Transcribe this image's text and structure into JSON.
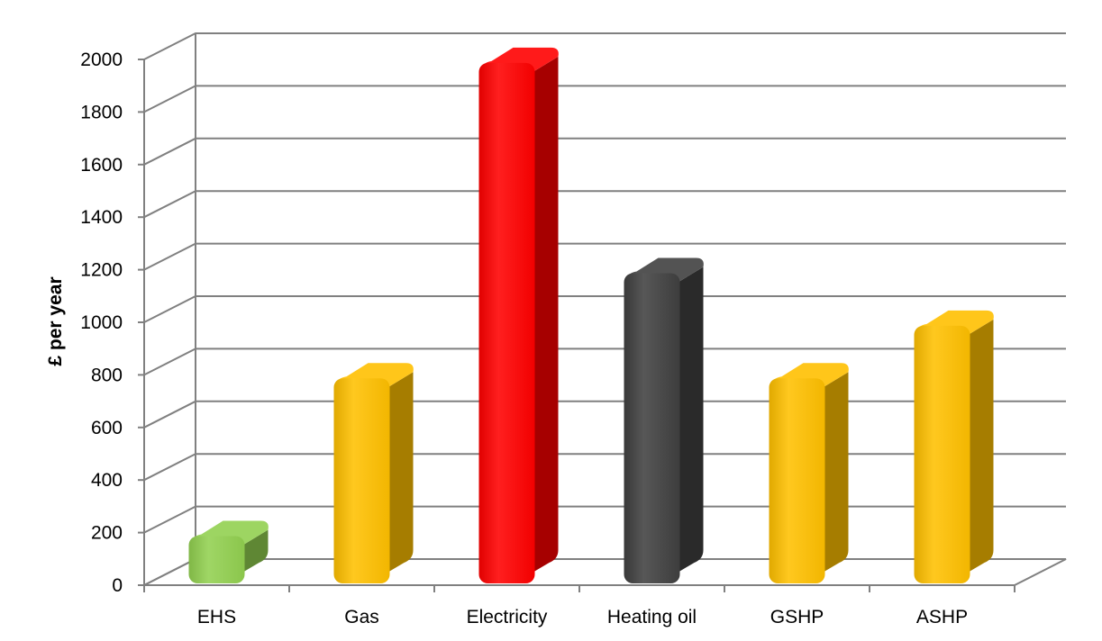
{
  "chart_data": {
    "type": "bar",
    "title": "",
    "xlabel": "",
    "ylabel": "£ per year",
    "categories": [
      "EHS",
      "Gas",
      "Electricity",
      "Heating oil",
      "GSHP",
      "ASHP"
    ],
    "values": [
      180,
      780,
      1980,
      1180,
      780,
      980
    ],
    "ylim": [
      0,
      2000
    ],
    "yticks": [
      0,
      200,
      400,
      600,
      800,
      1000,
      1200,
      1400,
      1600,
      1800,
      2000
    ],
    "grid": true,
    "style": "3d-rounded-columns",
    "bar_colors": [
      "#92d050",
      "#ffc000",
      "#ff0000",
      "#404040",
      "#ffc000",
      "#ffc000"
    ]
  }
}
